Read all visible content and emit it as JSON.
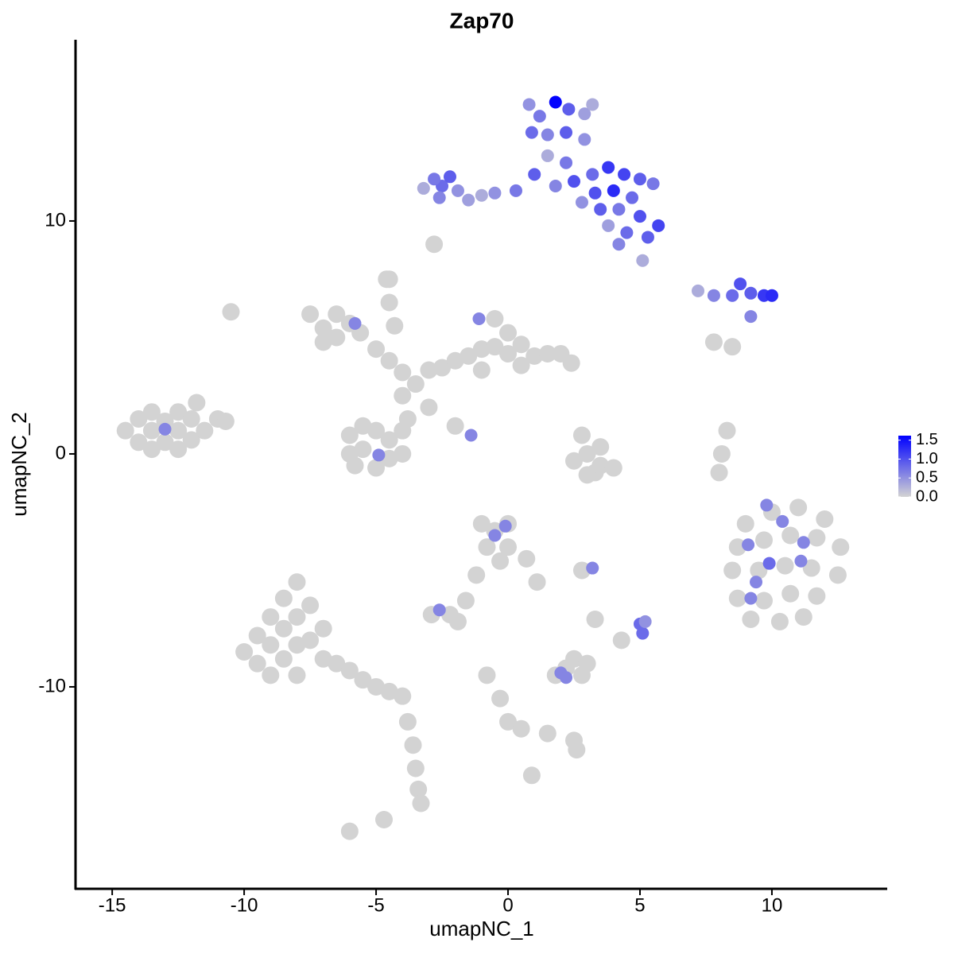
{
  "chart_data": {
    "type": "scatter",
    "title": "Zap70",
    "x_label": "umapNC_1",
    "y_label": "umapNC_2",
    "xlim": [
      -16.39,
      14.37
    ],
    "ylim": [
      -18.67,
      17.78
    ],
    "xticks": [
      -15,
      -10,
      -5,
      0,
      5,
      10
    ],
    "yticks": [
      -10,
      0,
      10
    ],
    "low_color": "#d3d3d3",
    "high_color": "#0000ff",
    "colorlim": [
      0,
      1.62
    ],
    "colorticks": [
      {
        "value": 0,
        "label": "0.0"
      },
      0.5,
      {
        "value": 1,
        "label": "1.0"
      },
      1.5
    ],
    "x": [
      -14.5,
      -14,
      -14,
      -13.5,
      -13.5,
      -13.5,
      -13,
      -13,
      -12.5,
      -12.5,
      -12.5,
      -12,
      -12,
      -11.5,
      -11.8,
      -11,
      -10.7,
      -13,
      -7.5,
      -7,
      -6.5,
      -6.5,
      -6,
      -5.6,
      -7,
      -5.8,
      -5,
      -4.5,
      -4,
      -3.5,
      -4.6,
      -4.5,
      -4.3,
      -3,
      -2.5,
      -4,
      -2,
      -1.5,
      -1,
      -0.5,
      0,
      0,
      0.5,
      1,
      1.5,
      2,
      2.4,
      -0.5,
      0.5,
      -1,
      -1.1,
      -6,
      -6,
      -5.5,
      -5.5,
      -5,
      -5,
      -4.5,
      -4.5,
      -4,
      -4,
      -3.8,
      -5.8,
      -4.9,
      -3,
      -2,
      -1.4,
      2.8,
      3.0,
      3.5,
      3.3,
      2.5,
      4,
      3,
      3.5,
      8.3,
      8.1,
      8.0,
      -4.5,
      -10.5,
      9,
      10,
      11,
      12,
      8.7,
      9.7,
      10.7,
      11.7,
      12.6,
      8.5,
      9.5,
      10.5,
      11.5,
      12.5,
      8.7,
      9.7,
      10.7,
      11.7,
      9.2,
      10.3,
      11.2,
      9.9,
      11.1,
      10.4,
      9.4,
      9.1,
      9.2,
      11.2,
      9.8,
      -10,
      -9.5,
      -9.5,
      -9,
      -9,
      -9,
      -8.5,
      -8.5,
      -8.5,
      -8,
      -8,
      -8,
      -8,
      -7.5,
      -7.5,
      -7,
      -7,
      -6.5,
      -6,
      -5.5,
      -5,
      -4.5,
      -4,
      -3.8,
      -3.6,
      -3.5,
      -3.4,
      -3.3,
      -6,
      -4.7,
      -1,
      -0.5,
      0,
      -0.8,
      0,
      0.7,
      1.1,
      -0.3,
      -1.2,
      -1.6,
      -0.5,
      -0.1,
      -2.9,
      -2.2,
      -1.9,
      -2.6,
      2.8,
      3.2,
      5,
      5.1,
      5.2,
      4.3,
      3.3,
      1.8,
      2.2,
      2.8,
      2.5,
      3,
      2.0,
      2.2,
      -0.8,
      -0.3,
      0,
      0.5,
      1.5,
      2.5,
      2.6,
      0.9,
      0.8,
      1.2,
      1.8,
      2.3,
      2.9,
      3.2,
      0.9,
      1.5,
      2.2,
      2.9,
      1.5,
      2.2,
      1.0,
      1.8,
      2.5,
      3.2,
      3.8,
      4.4,
      5,
      5.5,
      3.3,
      4,
      4.7,
      2.8,
      3.5,
      4.2,
      5,
      5.7,
      4.5,
      5.3,
      4.2,
      3.8,
      0.3,
      -0.5,
      -1,
      -1.5,
      -2.5,
      -2.8,
      -2.2,
      -2.6,
      -1.9,
      -3.2,
      -2.8,
      5.1,
      7.2,
      7.8,
      8.5,
      9.2,
      9.7,
      10,
      9.2,
      8.8,
      7.8,
      8.5
    ],
    "y": [
      1.0,
      0.5,
      1.5,
      0.2,
      1.0,
      1.8,
      0.5,
      1.4,
      0.2,
      1.0,
      1.8,
      0.6,
      1.5,
      1.0,
      2.2,
      1.5,
      1.4,
      1.06,
      6.0,
      5.4,
      6.0,
      5.0,
      5.6,
      5.2,
      4.8,
      5.6,
      4.5,
      4.0,
      3.5,
      3.0,
      7.5,
      6.5,
      5.5,
      3.6,
      3.7,
      2.5,
      4.0,
      4.2,
      4.5,
      4.6,
      5.2,
      4.3,
      4.7,
      4.2,
      4.3,
      4.3,
      3.9,
      5.8,
      3.8,
      3.6,
      5.8,
      0.8,
      0,
      1.2,
      0.2,
      1.0,
      -0.6,
      0.6,
      -0.2,
      1.0,
      0,
      1.5,
      -0.5,
      -0.05,
      2,
      1.2,
      0.8,
      0.8,
      0,
      -0.5,
      -0.8,
      -0.3,
      -0.6,
      -0.9,
      0.3,
      1.0,
      0,
      -0.8,
      7.5,
      6.1,
      -3,
      -2.5,
      -2.3,
      -2.8,
      -4,
      -3.7,
      -3.5,
      -3.6,
      -4,
      -5,
      -5,
      -4.8,
      -4.9,
      -5.2,
      -6.2,
      -6.3,
      -6,
      -6.1,
      -7.1,
      -7.2,
      -7,
      -4.7,
      -4.6,
      -2.9,
      -5.5,
      -3.9,
      -6.2,
      -3.8,
      -2.2,
      -8.5,
      -7.8,
      -9,
      -7,
      -8.2,
      -9.5,
      -6.2,
      -7.5,
      -8.8,
      -5.5,
      -7,
      -8.2,
      -9.5,
      -6.5,
      -8,
      -7.5,
      -8.8,
      -9,
      -9.3,
      -9.7,
      -10,
      -10.2,
      -10.4,
      -11.5,
      -12.5,
      -13.5,
      -14.4,
      -15,
      -16.2,
      -15.7,
      -3,
      -3.3,
      -3,
      -4,
      -4,
      -4.5,
      -5.5,
      -4.6,
      -5.2,
      -6.3,
      -3.5,
      -3.1,
      -6.9,
      -6.9,
      -7.2,
      -6.7,
      -5.0,
      -4.9,
      -7.3,
      -7.7,
      -7.2,
      -8.0,
      -7.1,
      -9.5,
      -9.2,
      -9.5,
      -8.8,
      -9.0,
      -9.4,
      -9.6,
      -9.5,
      -10.5,
      -11.5,
      -11.8,
      -12,
      -12.3,
      -12.7,
      -13.8,
      15,
      14.5,
      15.1,
      14.8,
      14.6,
      15,
      13.8,
      13.7,
      13.8,
      13.5,
      12.8,
      12.5,
      12,
      11.5,
      11.7,
      12,
      12.3,
      12,
      11.8,
      11.6,
      11.2,
      11.3,
      11,
      10.8,
      10.5,
      10.5,
      10.2,
      9.8,
      9.5,
      9.3,
      9,
      9.8,
      11.3,
      11.2,
      11.1,
      10.9,
      11.5,
      11.8,
      11.9,
      11,
      11.3,
      11.4,
      9.0,
      8.3,
      7.0,
      6.8,
      6.8,
      6.9,
      6.8,
      6.8,
      5.9,
      7.3,
      4.8,
      4.6
    ],
    "expression": [
      0,
      0,
      0,
      0,
      0,
      0,
      0,
      0,
      0,
      0,
      0,
      0,
      0,
      0,
      0,
      0,
      0,
      0.6,
      0,
      0,
      0,
      0,
      0,
      0,
      0,
      0.6,
      0,
      0,
      0,
      0,
      0,
      0,
      0,
      0,
      0,
      0,
      0,
      0,
      0,
      0,
      0,
      0,
      0,
      0,
      0,
      0,
      0,
      0,
      0,
      0,
      0.6,
      0,
      0,
      0,
      0,
      0,
      0,
      0,
      0,
      0,
      0,
      0,
      0,
      0.6,
      0,
      0,
      0.6,
      0,
      0,
      0,
      0,
      0,
      0,
      0,
      0,
      0,
      0,
      0,
      0,
      0,
      0,
      0,
      0,
      0,
      0,
      0,
      0,
      0,
      0,
      0,
      0,
      0,
      0,
      0,
      0,
      0,
      0,
      0,
      0,
      0,
      0,
      0.8,
      0.6,
      0.6,
      0.6,
      0.6,
      0.6,
      0.6,
      0.6,
      0,
      0,
      0,
      0,
      0,
      0,
      0,
      0,
      0,
      0,
      0,
      0,
      0,
      0,
      0,
      0,
      0,
      0,
      0,
      0,
      0,
      0,
      0,
      0,
      0,
      0,
      0,
      0,
      0,
      0,
      0,
      0,
      0,
      0,
      0,
      0,
      0,
      0,
      0,
      0,
      0.6,
      0.6,
      0,
      0,
      0,
      0.6,
      0,
      0.6,
      0.8,
      0.8,
      0.5,
      0,
      0,
      0,
      0,
      0,
      0,
      0,
      0.6,
      0.6,
      0,
      0,
      0,
      0,
      0,
      0,
      0,
      0,
      0.5,
      0.7,
      1.6,
      0.9,
      0.4,
      0.3,
      0.8,
      0.6,
      0.9,
      0.5,
      0.3,
      0.7,
      0.9,
      0.6,
      1.0,
      0.8,
      1.2,
      1.1,
      0.9,
      0.7,
      1.0,
      1.3,
      0.8,
      0.5,
      0.9,
      0.7,
      1.0,
      1.1,
      0.8,
      0.9,
      0.6,
      0.4,
      0.7,
      0.5,
      0.3,
      0.4,
      0.8,
      0.7,
      0.9,
      0.6,
      0.5,
      0.3,
      0,
      0.3,
      0.3,
      0.6,
      0.8,
      0.9,
      1.2,
      1.3,
      0.6,
      1.0,
      0,
      0
    ]
  }
}
